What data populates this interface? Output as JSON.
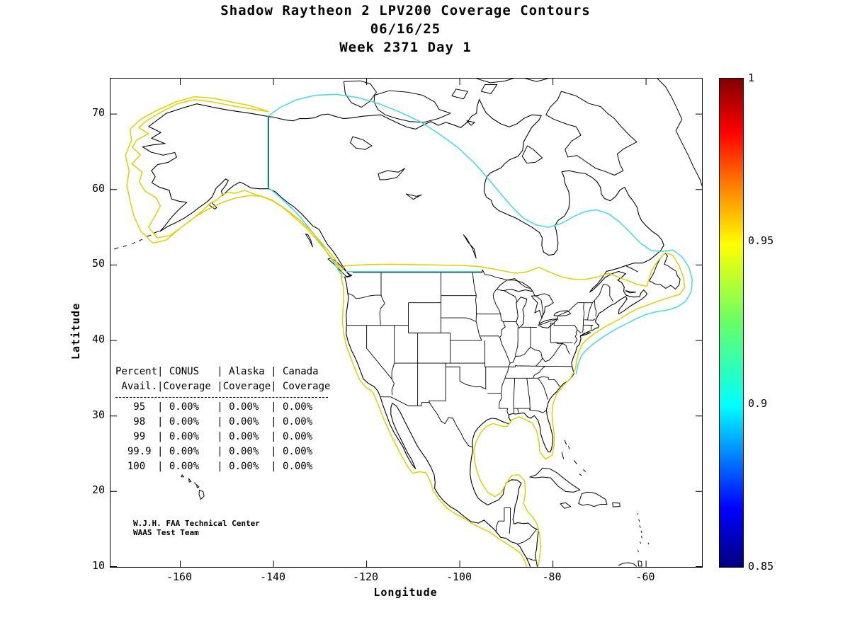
{
  "title": {
    "line1": "Shadow Raytheon 2 LPV200 Coverage Contours",
    "line2": "06/16/25",
    "line3": "Week 2371 Day 1"
  },
  "axes": {
    "xlabel": "Longitude",
    "ylabel": "Latitude",
    "x_ticks": [
      "-160",
      "-140",
      "-120",
      "-100",
      "-80",
      "-60"
    ],
    "y_ticks": [
      "70",
      "60",
      "50",
      "40",
      "30",
      "20",
      "10"
    ],
    "xlim": [
      -175,
      -48
    ],
    "ylim": [
      10,
      74.7
    ]
  },
  "colorbar": {
    "ticks": [
      "1",
      "0.95",
      "0.9",
      "0.85"
    ],
    "range": [
      0.85,
      1
    ],
    "colormap": "jet"
  },
  "contours": {
    "levels": [
      {
        "value": 0.95,
        "color": "#e3cf00",
        "name": "LPV200 0.95 contour"
      },
      {
        "value": 0.9,
        "color": "#3cdcf0",
        "name": "LPV200 0.90 contour"
      }
    ]
  },
  "availability_table": {
    "columns": [
      "Percent Avail.",
      "CONUS Coverage",
      "Alaska Coverage",
      "Canada Coverage"
    ],
    "header_line1": "Percent| CONUS   | Alaska | Canada",
    "header_line2": " Avail.|Coverage |Coverage| Coverage",
    "rows": [
      {
        "percent": "95",
        "conus": "0.00%",
        "alaska": "0.00%",
        "canada": "0.00%"
      },
      {
        "percent": "98",
        "conus": "0.00%",
        "alaska": "0.00%",
        "canada": "0.00%"
      },
      {
        "percent": "99",
        "conus": "0.00%",
        "alaska": "0.00%",
        "canada": "0.00%"
      },
      {
        "percent": "99.9",
        "conus": "0.00%",
        "alaska": "0.00%",
        "canada": "0.00%"
      },
      {
        "percent": "100",
        "conus": "0.00%",
        "alaska": "0.00%",
        "canada": "0.00%"
      }
    ]
  },
  "credit": {
    "line1": "W.J.H. FAA Technical Center",
    "line2": "WAAS Test Team"
  },
  "chart_data": {
    "type": "table",
    "title": "Shadow Raytheon 2 LPV200 Coverage Contours",
    "subtitle": [
      "06/16/25",
      "Week 2371 Day 1"
    ],
    "description": "Geographic contour map of North America showing LPV200 coverage contours with availability table",
    "categories": [
      "95",
      "98",
      "99",
      "99.9",
      "100"
    ],
    "categories_label": "Percent Avail.",
    "series": [
      {
        "name": "CONUS Coverage",
        "values": [
          "0.00%",
          "0.00%",
          "0.00%",
          "0.00%",
          "0.00%"
        ]
      },
      {
        "name": "Alaska Coverage",
        "values": [
          "0.00%",
          "0.00%",
          "0.00%",
          "0.00%",
          "0.00%"
        ]
      },
      {
        "name": "Canada Coverage",
        "values": [
          "0.00%",
          "0.00%",
          "0.00%",
          "0.00%",
          "0.00%"
        ]
      }
    ],
    "xlabel": "Longitude",
    "ylabel": "Latitude",
    "x_ticks": [
      -160,
      -140,
      -120,
      -100,
      -80,
      -60
    ],
    "y_ticks": [
      10,
      20,
      30,
      40,
      50,
      60,
      70
    ],
    "xlim": [
      -175,
      -48
    ],
    "ylim": [
      10,
      74.7
    ],
    "colorbar": {
      "min": 0.85,
      "max": 1,
      "ticks": [
        1,
        0.95,
        0.9,
        0.85
      ],
      "colormap": "jet"
    },
    "contour_levels": [
      0.95,
      0.9
    ]
  }
}
